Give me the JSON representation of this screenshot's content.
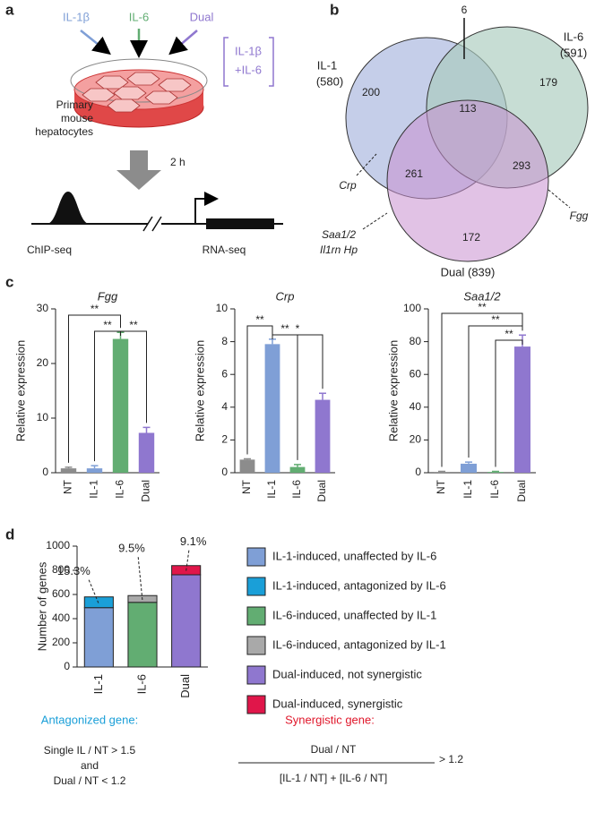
{
  "panel_labels": [
    "a",
    "b",
    "c",
    "d"
  ],
  "panel_a": {
    "treatments": [
      "IL-1β",
      "IL-6",
      "Dual"
    ],
    "combo": [
      "IL-1β",
      "+IL-6"
    ],
    "cells": [
      "Primary",
      "mouse",
      "hepatocytes"
    ],
    "time": "2 h",
    "assays": [
      "ChIP-seq",
      "RNA-seq"
    ]
  },
  "panel_b": {
    "top_count": 6,
    "sets": [
      {
        "name": "IL-1",
        "total": "(580)"
      },
      {
        "name": "IL-6",
        "total": "(591)"
      },
      {
        "name": "Dual (839)"
      }
    ],
    "regions": [
      200,
      179,
      113,
      261,
      293,
      172
    ],
    "genes": [
      "Crp",
      "Fgg",
      "Saa1/2",
      "Il1rn Hp"
    ]
  },
  "chart_data": [
    {
      "type": "bar",
      "title": "Fgg",
      "y_label": "Relative expression",
      "categories": [
        "NT",
        "IL-1",
        "IL-6",
        "Dual"
      ],
      "values": [
        0.8,
        0.8,
        24.5,
        7.3
      ],
      "errors": [
        0.2,
        0.5,
        1.2,
        1.0
      ],
      "colors": [
        "#8c8c8c",
        "#7f9fd6",
        "#62ad72",
        "#8f77cf"
      ],
      "ylim": [
        0,
        30
      ],
      "yticks": [
        0,
        10,
        20,
        30
      ],
      "annotations": [
        "**",
        "**",
        "**"
      ]
    },
    {
      "type": "bar",
      "title": "Crp",
      "y_label": "Relative expression",
      "categories": [
        "NT",
        "IL-1",
        "IL-6",
        "Dual"
      ],
      "values": [
        0.8,
        7.85,
        0.35,
        4.45
      ],
      "errors": [
        0.05,
        0.3,
        0.15,
        0.4
      ],
      "colors": [
        "#8c8c8c",
        "#7f9fd6",
        "#62ad72",
        "#8f77cf"
      ],
      "ylim": [
        0,
        10
      ],
      "yticks": [
        0,
        2,
        4,
        6,
        8,
        10
      ],
      "annotations": [
        "**",
        "**",
        "*"
      ]
    },
    {
      "type": "bar",
      "title": "Saa1/2",
      "y_label": "Relative expression",
      "categories": [
        "NT",
        "IL-1",
        "IL-6",
        "Dual"
      ],
      "values": [
        0.5,
        5.5,
        0.5,
        77
      ],
      "errors": [
        0.3,
        1,
        0.3,
        7
      ],
      "colors": [
        "#8c8c8c",
        "#7f9fd6",
        "#62ad72",
        "#8f77cf"
      ],
      "ylim": [
        0,
        100
      ],
      "yticks": [
        0,
        20,
        40,
        60,
        80,
        100
      ],
      "annotations": [
        "**",
        "**",
        "**"
      ]
    },
    {
      "type": "stacked_bar",
      "y_label": "Number of genes",
      "categories": [
        "IL-1",
        "IL-6",
        "Dual"
      ],
      "series": [
        {
          "name": "IL-1-induced, unaffected by IL-6",
          "color": "#7f9fd6",
          "values": [
            491,
            null,
            null
          ]
        },
        {
          "name": "IL-1-induced, antagonized by IL-6",
          "color": "#1a9fd8",
          "values": [
            89,
            null,
            null
          ]
        },
        {
          "name": "IL-6-induced, unaffected by IL-1",
          "color": "#62ad72",
          "values": [
            null,
            535,
            null
          ]
        },
        {
          "name": "IL-6-induced, antagonized by IL-1",
          "color": "#a9a9a9",
          "values": [
            null,
            56,
            null
          ]
        },
        {
          "name": "Dual-induced, not synergistic",
          "color": "#8f77cf",
          "values": [
            null,
            null,
            763
          ]
        },
        {
          "name": "Dual-induced, synergistic",
          "color": "#e0164a",
          "values": [
            null,
            null,
            76
          ]
        }
      ],
      "ylim": [
        0,
        1000
      ],
      "yticks": [
        0,
        200,
        400,
        600,
        800,
        1000
      ],
      "annotations": [
        "15.3%",
        "9.5%",
        "9.1%"
      ]
    }
  ],
  "definitions": {
    "antagonized": {
      "title": "Antagonized gene:",
      "lines": [
        "Single IL / NT > 1.5",
        "and",
        "Dual / NT < 1.2"
      ]
    },
    "synergistic": {
      "title": "Synergistic gene:",
      "numerator": "Dual / NT",
      "denominator": "[IL-1 / NT] + [IL-6 / NT]",
      "threshold": "> 1.2"
    }
  }
}
